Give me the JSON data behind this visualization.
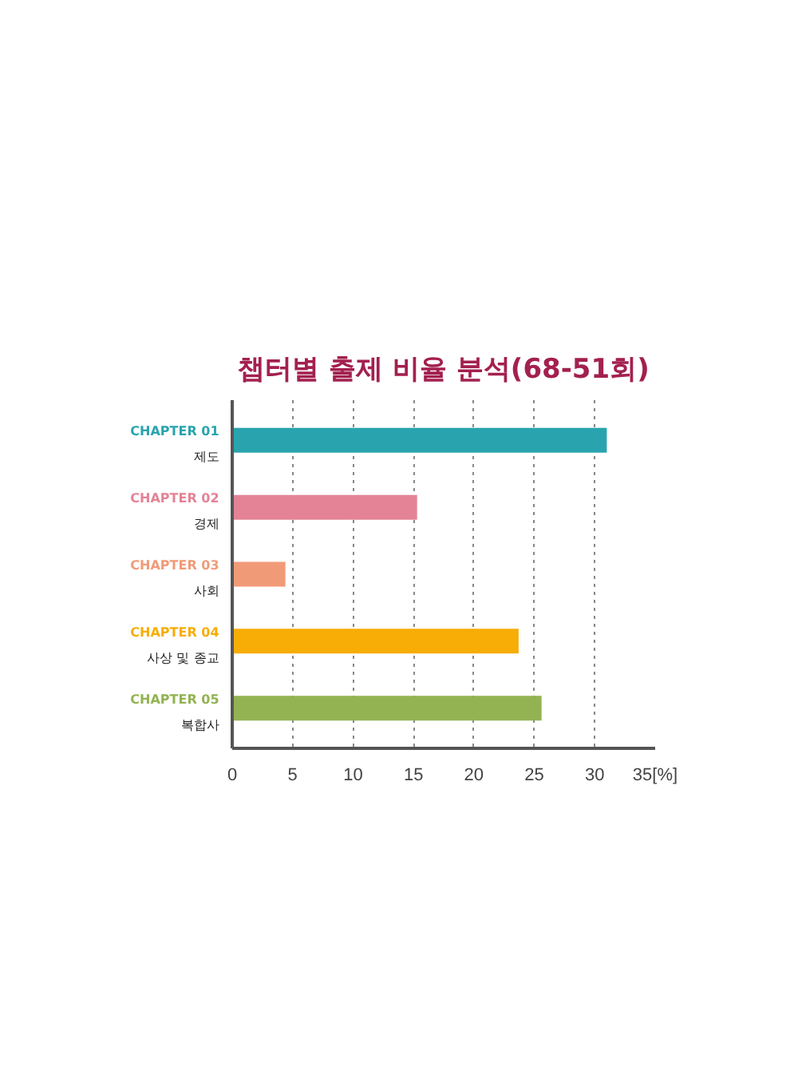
{
  "chart_data": {
    "type": "bar",
    "orientation": "horizontal",
    "title": "챕터별 출제 비율 분석(68-51회)",
    "categories": [
      "CHAPTER 01\n제도",
      "CHAPTER 02\n경제",
      "CHAPTER 03\n사회",
      "CHAPTER 04\n사상 및 종교",
      "CHAPTER 05\n복합사"
    ],
    "values": [
      31,
      15.3,
      4.4,
      23.7,
      25.6
    ],
    "colors": [
      "#29a4ae",
      "#e48396",
      "#f19a78",
      "#f7ad06",
      "#93b352"
    ],
    "xlim": [
      0,
      35
    ],
    "xticks": [
      0,
      5,
      10,
      15,
      20,
      25,
      30,
      {
        "value": 35,
        "label": "35[%]"
      }
    ],
    "grid": "x"
  }
}
